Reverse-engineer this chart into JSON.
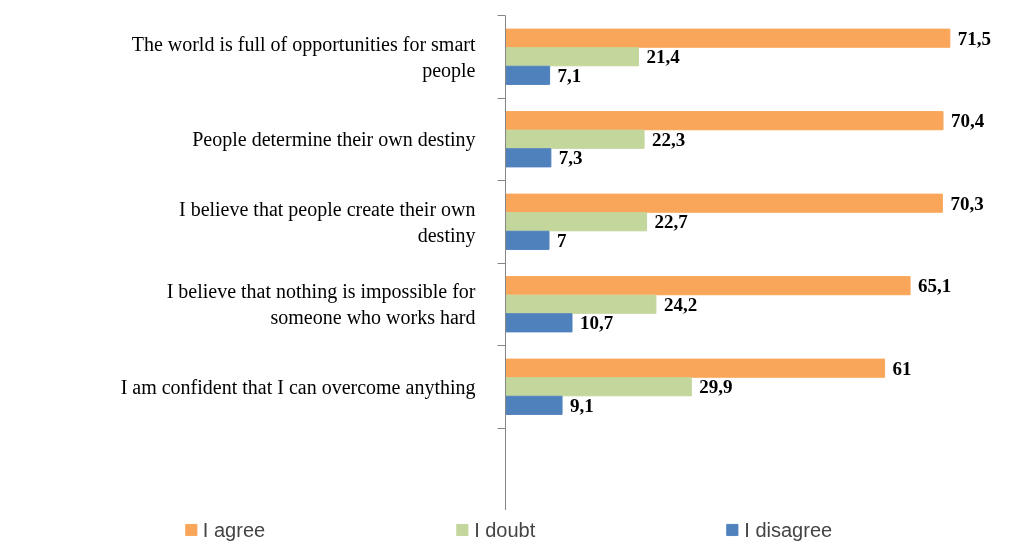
{
  "chart_data": {
    "type": "bar",
    "orientation": "horizontal",
    "categories": [
      "The world is full of opportunities for smart people",
      "People determine their own destiny",
      "I believe that people create their own destiny",
      "I believe that nothing is impossible for someone who works hard",
      "I am confident that I can overcome anything",
      null
    ],
    "series": [
      {
        "name": "I agree",
        "color": "#f9a65a",
        "values": [
          71.5,
          70.4,
          70.3,
          65.1,
          61,
          null
        ],
        "value_labels": [
          "71,5",
          "70,4",
          "70,3",
          "65,1",
          "61",
          null
        ]
      },
      {
        "name": "I doubt",
        "color": "#c3d69b",
        "values": [
          21.4,
          22.3,
          22.7,
          24.2,
          29.9,
          null
        ],
        "value_labels": [
          "21,4",
          "22,3",
          "22,7",
          "24,2",
          "29,9",
          null
        ]
      },
      {
        "name": "I disagree",
        "color": "#4f81bd",
        "values": [
          7.1,
          7.3,
          7,
          10.7,
          9.1,
          null
        ],
        "value_labels": [
          "7,1",
          "7,3",
          "7",
          "10,7",
          "9,1",
          null
        ]
      }
    ],
    "legend": "bottom",
    "grid": false
  }
}
